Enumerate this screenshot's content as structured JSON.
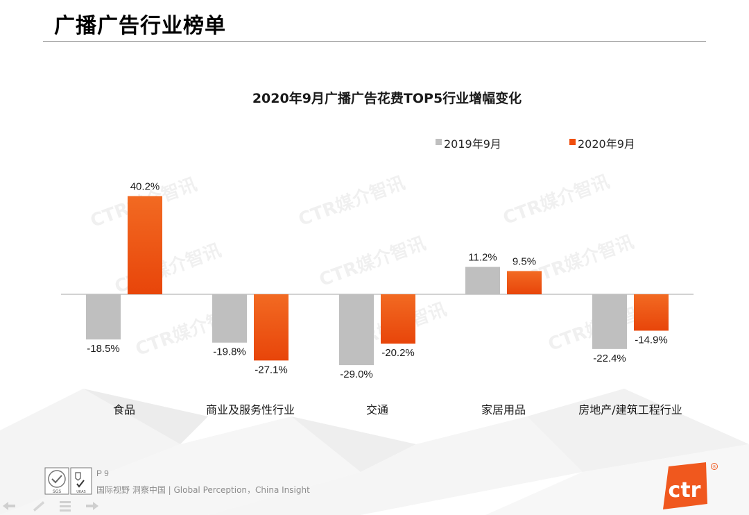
{
  "slide": {
    "title": "广播广告行业榜单",
    "page_number": "P 9",
    "tagline": "国际视野  洞察中国 |  Global Perception，China Insight",
    "brand_logo_text": "ctr",
    "watermark_text": "CTR媒介智讯",
    "cert_label": "SGS",
    "cert_label_2": "UKAS"
  },
  "chart_data": {
    "type": "bar",
    "title": "2020年9月广播广告花费TOP5行业增幅变化",
    "categories": [
      "食品",
      "商业及服务性行业",
      "交通",
      "家居用品",
      "房地产/建筑工程行业"
    ],
    "series": [
      {
        "name": "2019年9月",
        "values": [
          -18.5,
          -19.8,
          -29.0,
          11.2,
          -22.4
        ],
        "labels": [
          "-18.5%",
          "-19.8%",
          "-29.0%",
          "11.2%",
          "-22.4%"
        ],
        "color": "#bfbfbf"
      },
      {
        "name": "2020年9月",
        "values": [
          40.2,
          -27.1,
          -20.2,
          9.5,
          -14.9
        ],
        "labels": [
          "40.2%",
          "-27.1%",
          "-20.2%",
          "9.5%",
          "-14.9%"
        ],
        "color": "#f04e0e"
      }
    ],
    "legend_position": "top-right",
    "grid": false,
    "xlabel": "",
    "ylabel": ""
  },
  "colors": {
    "accent": "#f04e0e",
    "gray_bar": "#bfbfbf",
    "brand_orange": "#f0581e"
  },
  "icons": [
    "sgs-certification-icon",
    "ukas-certification-icon",
    "nav-back-icon",
    "nav-prev-icon",
    "nav-menu-icon",
    "nav-next-icon",
    "ctr-logo-icon"
  ]
}
